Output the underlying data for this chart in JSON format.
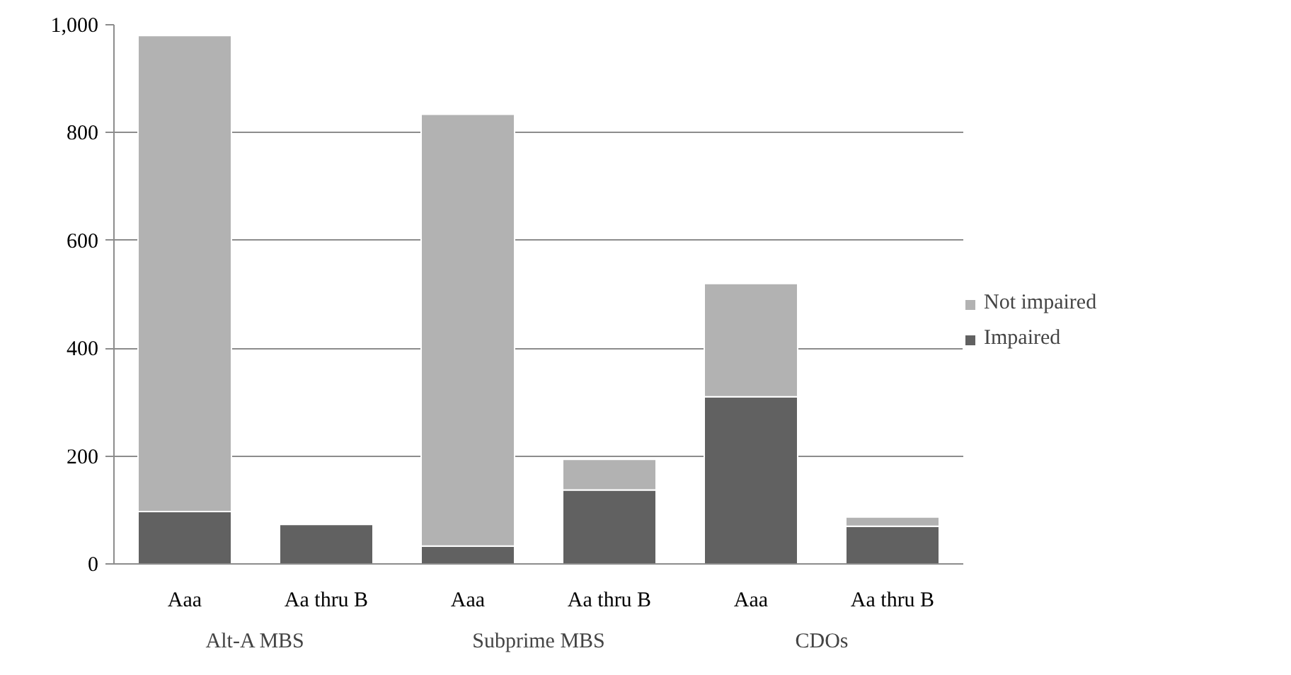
{
  "chart_data": {
    "type": "bar",
    "stacked": true,
    "categories": [
      "Aaa",
      "Aa thru B",
      "Aaa",
      "Aa thru B",
      "Aaa",
      "Aa thru B"
    ],
    "annotations": [
      "Alt-A MBS",
      "Subprime MBS",
      "CDOs"
    ],
    "series": [
      {
        "name": "Impaired",
        "color": "#616161",
        "values": [
          97,
          73,
          33,
          137,
          310,
          70
        ]
      },
      {
        "name": "Not impaired",
        "color": "#b2b2b2",
        "values": [
          883,
          null,
          801,
          57,
          210,
          17
        ]
      }
    ],
    "ylim": [
      0,
      1000
    ],
    "yticks": [
      0,
      200,
      400,
      600,
      800,
      {
        "value": 1000,
        "label": "1,000"
      }
    ],
    "grid": "y",
    "legend": "right"
  }
}
